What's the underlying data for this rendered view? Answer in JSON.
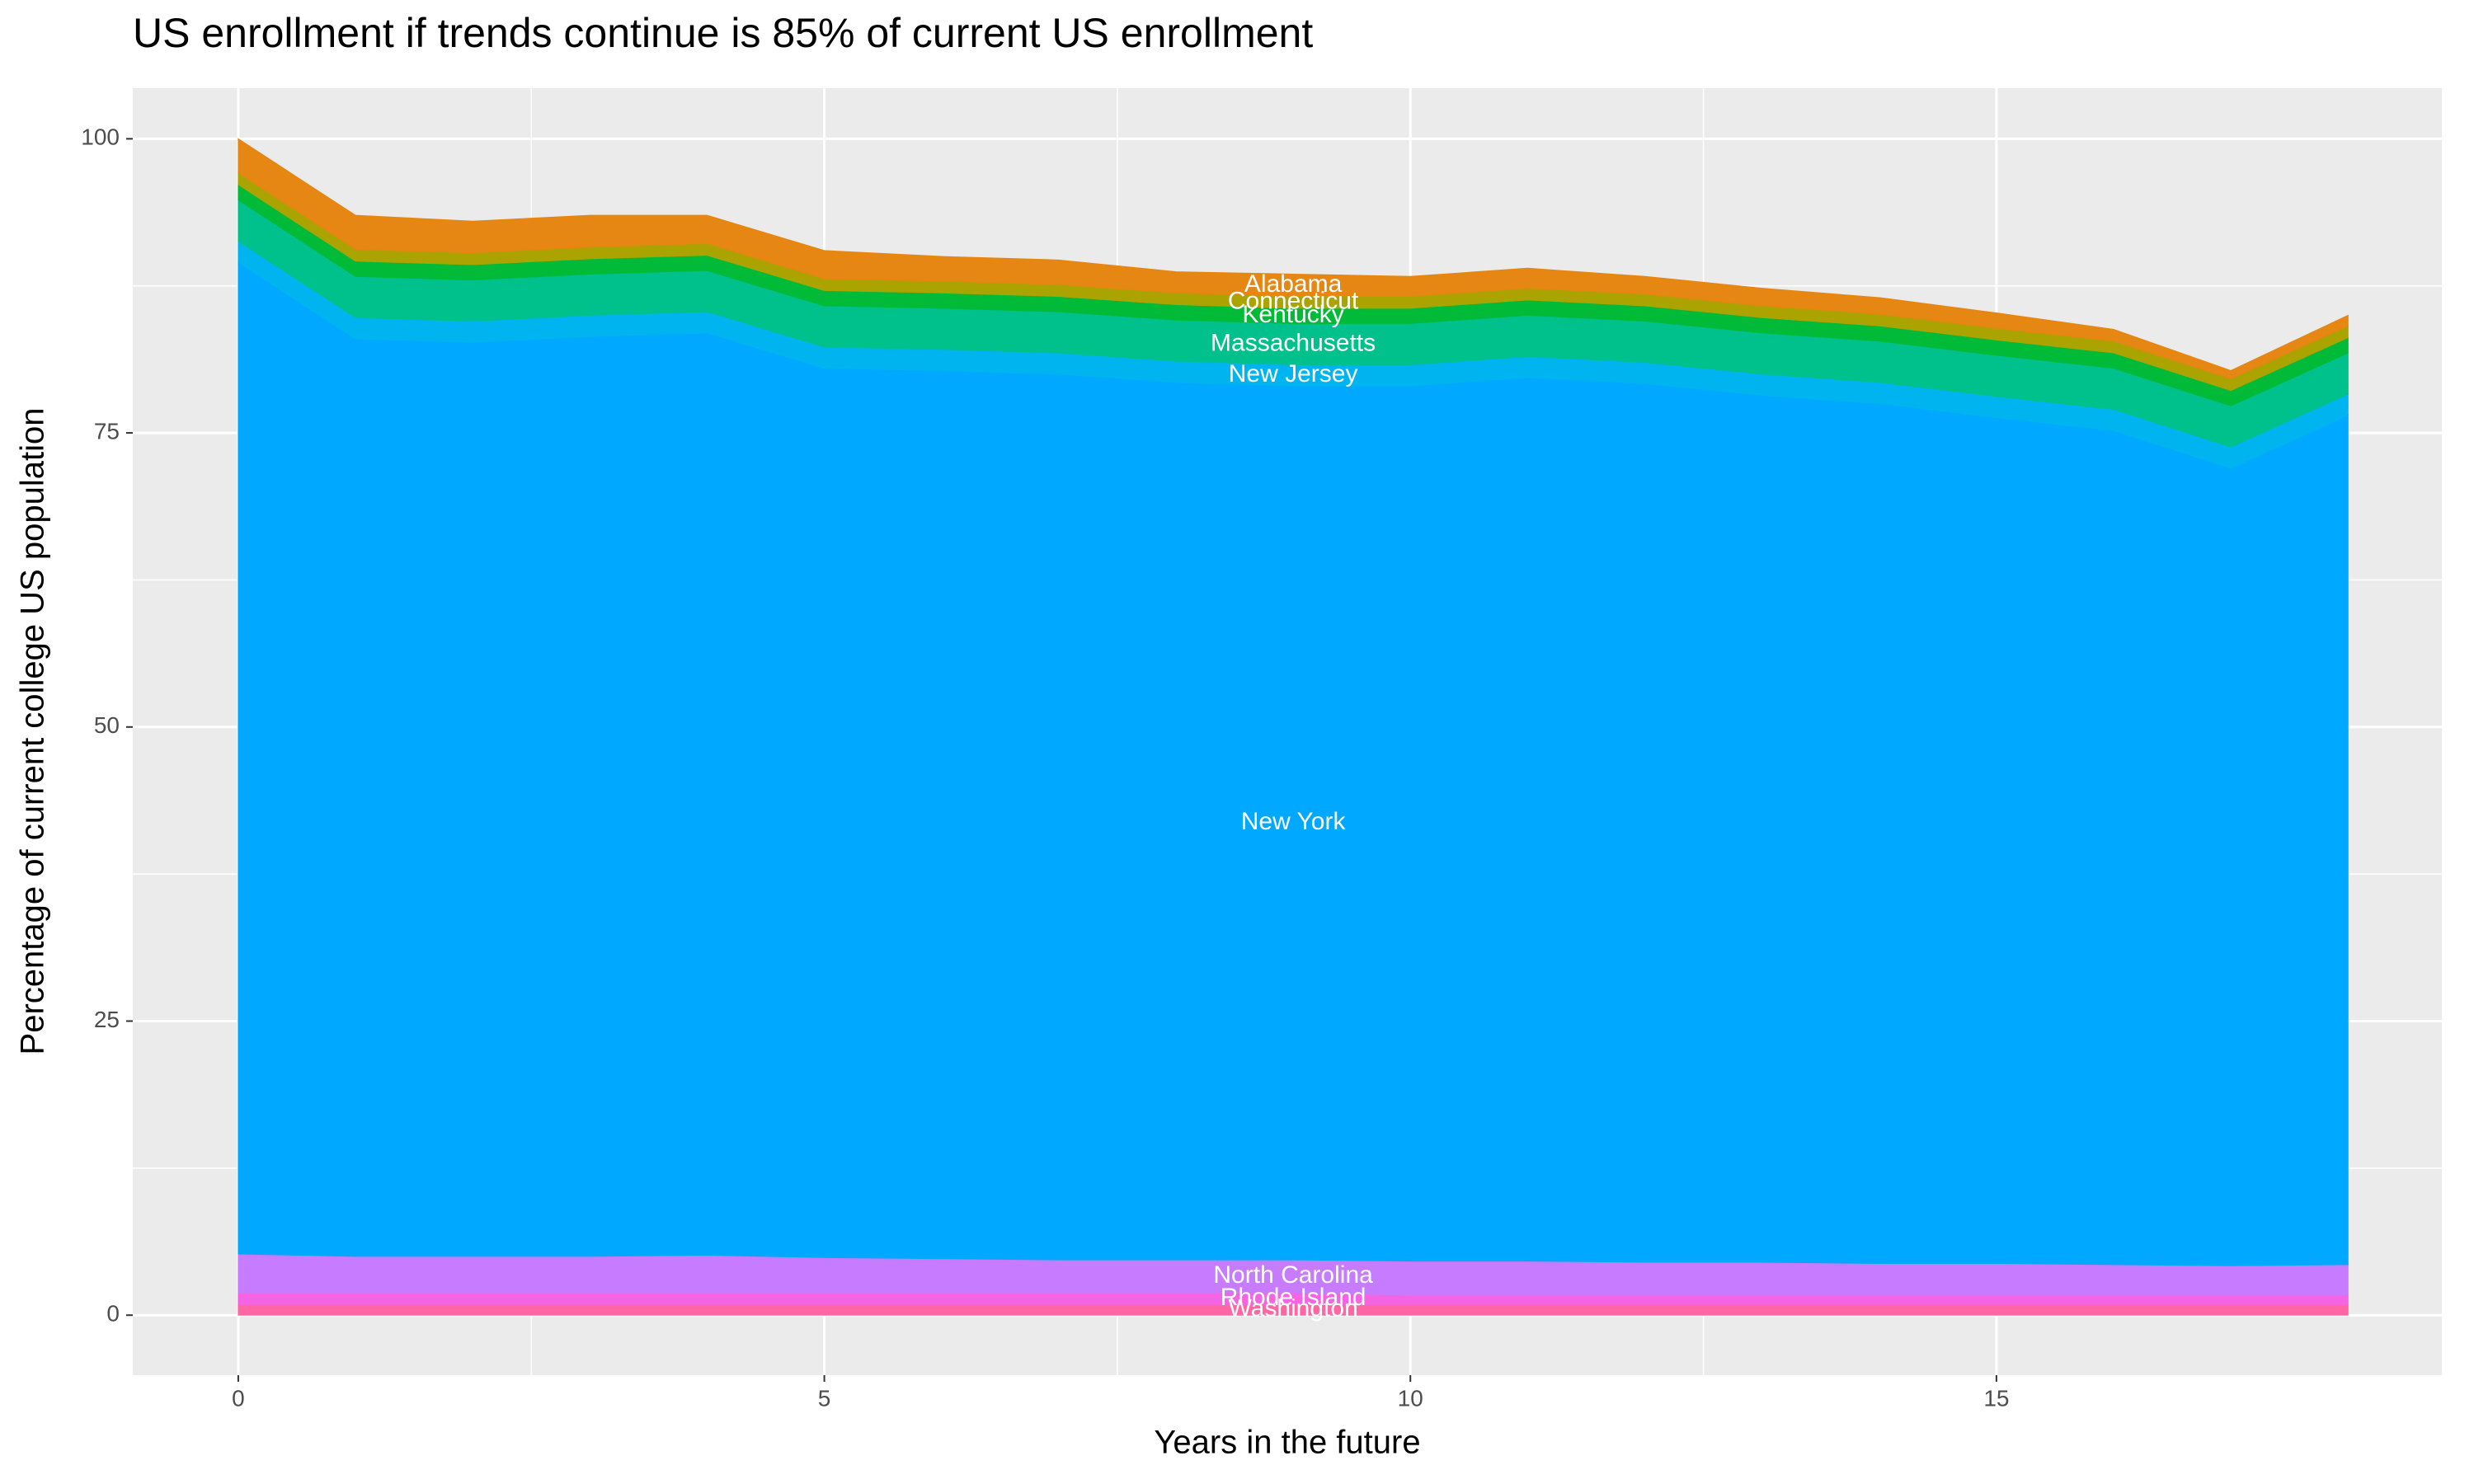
{
  "chart_data": {
    "type": "area",
    "title": "US enrollment if trends continue is 85% of current US enrollment",
    "x_label": "Years in the future",
    "y_label": "Percentage of current college US population",
    "x": [
      0,
      1,
      2,
      3,
      4,
      5,
      6,
      7,
      8,
      9,
      10,
      11,
      12,
      13,
      14,
      15,
      16,
      17,
      18
    ],
    "series": [
      {
        "name": "Washington",
        "color": "#FF67A4",
        "values": [
          0.9,
          0.9,
          0.9,
          0.9,
          0.9,
          0.9,
          0.9,
          0.9,
          0.9,
          0.9,
          0.9,
          0.9,
          0.9,
          0.9,
          0.9,
          0.9,
          0.9,
          0.9,
          0.9
        ]
      },
      {
        "name": "Rhode Island",
        "color": "#F564E3",
        "values": [
          1.0,
          1.0,
          1.0,
          1.0,
          1.0,
          1.0,
          1.0,
          1.0,
          1.0,
          1.0,
          0.8,
          0.8,
          0.8,
          0.8,
          0.8,
          0.8,
          0.8,
          0.8,
          0.8
        ]
      },
      {
        "name": "North Carolina",
        "color": "#C77CFF",
        "values": [
          3.3,
          3.1,
          3.1,
          3.1,
          3.2,
          3.0,
          2.9,
          2.8,
          2.8,
          2.8,
          2.9,
          2.9,
          2.8,
          2.8,
          2.7,
          2.7,
          2.6,
          2.5,
          2.6
        ]
      },
      {
        "name": "New York",
        "color": "#00A9FF",
        "values": [
          84.3,
          78.0,
          77.7,
          78.2,
          78.4,
          75.6,
          75.5,
          75.3,
          74.6,
          74.3,
          74.4,
          75.1,
          74.7,
          73.7,
          73.1,
          71.9,
          70.9,
          67.8,
          72.2
        ]
      },
      {
        "name": "New Jersey",
        "color": "#00B4EF",
        "values": [
          1.8,
          1.8,
          1.8,
          1.8,
          1.8,
          1.8,
          1.8,
          1.8,
          1.8,
          1.8,
          1.8,
          1.8,
          1.8,
          1.8,
          1.8,
          1.8,
          1.8,
          1.8,
          1.8
        ]
      },
      {
        "name": "Massachusetts",
        "color": "#00C08B",
        "values": [
          3.5,
          3.5,
          3.5,
          3.5,
          3.5,
          3.5,
          3.5,
          3.5,
          3.5,
          3.5,
          3.5,
          3.5,
          3.5,
          3.5,
          3.5,
          3.5,
          3.5,
          3.5,
          3.5
        ]
      },
      {
        "name": "Kentucky",
        "color": "#00BA38",
        "values": [
          1.3,
          1.3,
          1.3,
          1.3,
          1.3,
          1.3,
          1.3,
          1.3,
          1.3,
          1.3,
          1.3,
          1.3,
          1.3,
          1.3,
          1.3,
          1.3,
          1.3,
          1.3,
          1.3
        ]
      },
      {
        "name": "Connecticut",
        "color": "#ABA300",
        "values": [
          1.0,
          1.0,
          1.0,
          1.0,
          1.0,
          1.0,
          1.0,
          1.0,
          1.0,
          1.0,
          1.0,
          1.0,
          1.0,
          1.0,
          1.0,
          1.0,
          1.0,
          1.0,
          1.0
        ]
      },
      {
        "name": "Alabama",
        "color": "#E68613",
        "values": [
          2.9,
          2.9,
          2.7,
          2.7,
          2.4,
          2.4,
          2.1,
          2.1,
          1.8,
          1.9,
          1.7,
          1.7,
          1.5,
          1.5,
          1.4,
          1.3,
          1.0,
          0.7,
          0.9
        ]
      }
    ],
    "xlim": [
      -0.9,
      18.8
    ],
    "ylim": [
      -5.1,
      104.3
    ],
    "xticks": [
      0,
      5,
      10,
      15
    ],
    "yticks": [
      0,
      25,
      50,
      75,
      100
    ],
    "grid": true,
    "label_x": 9
  }
}
